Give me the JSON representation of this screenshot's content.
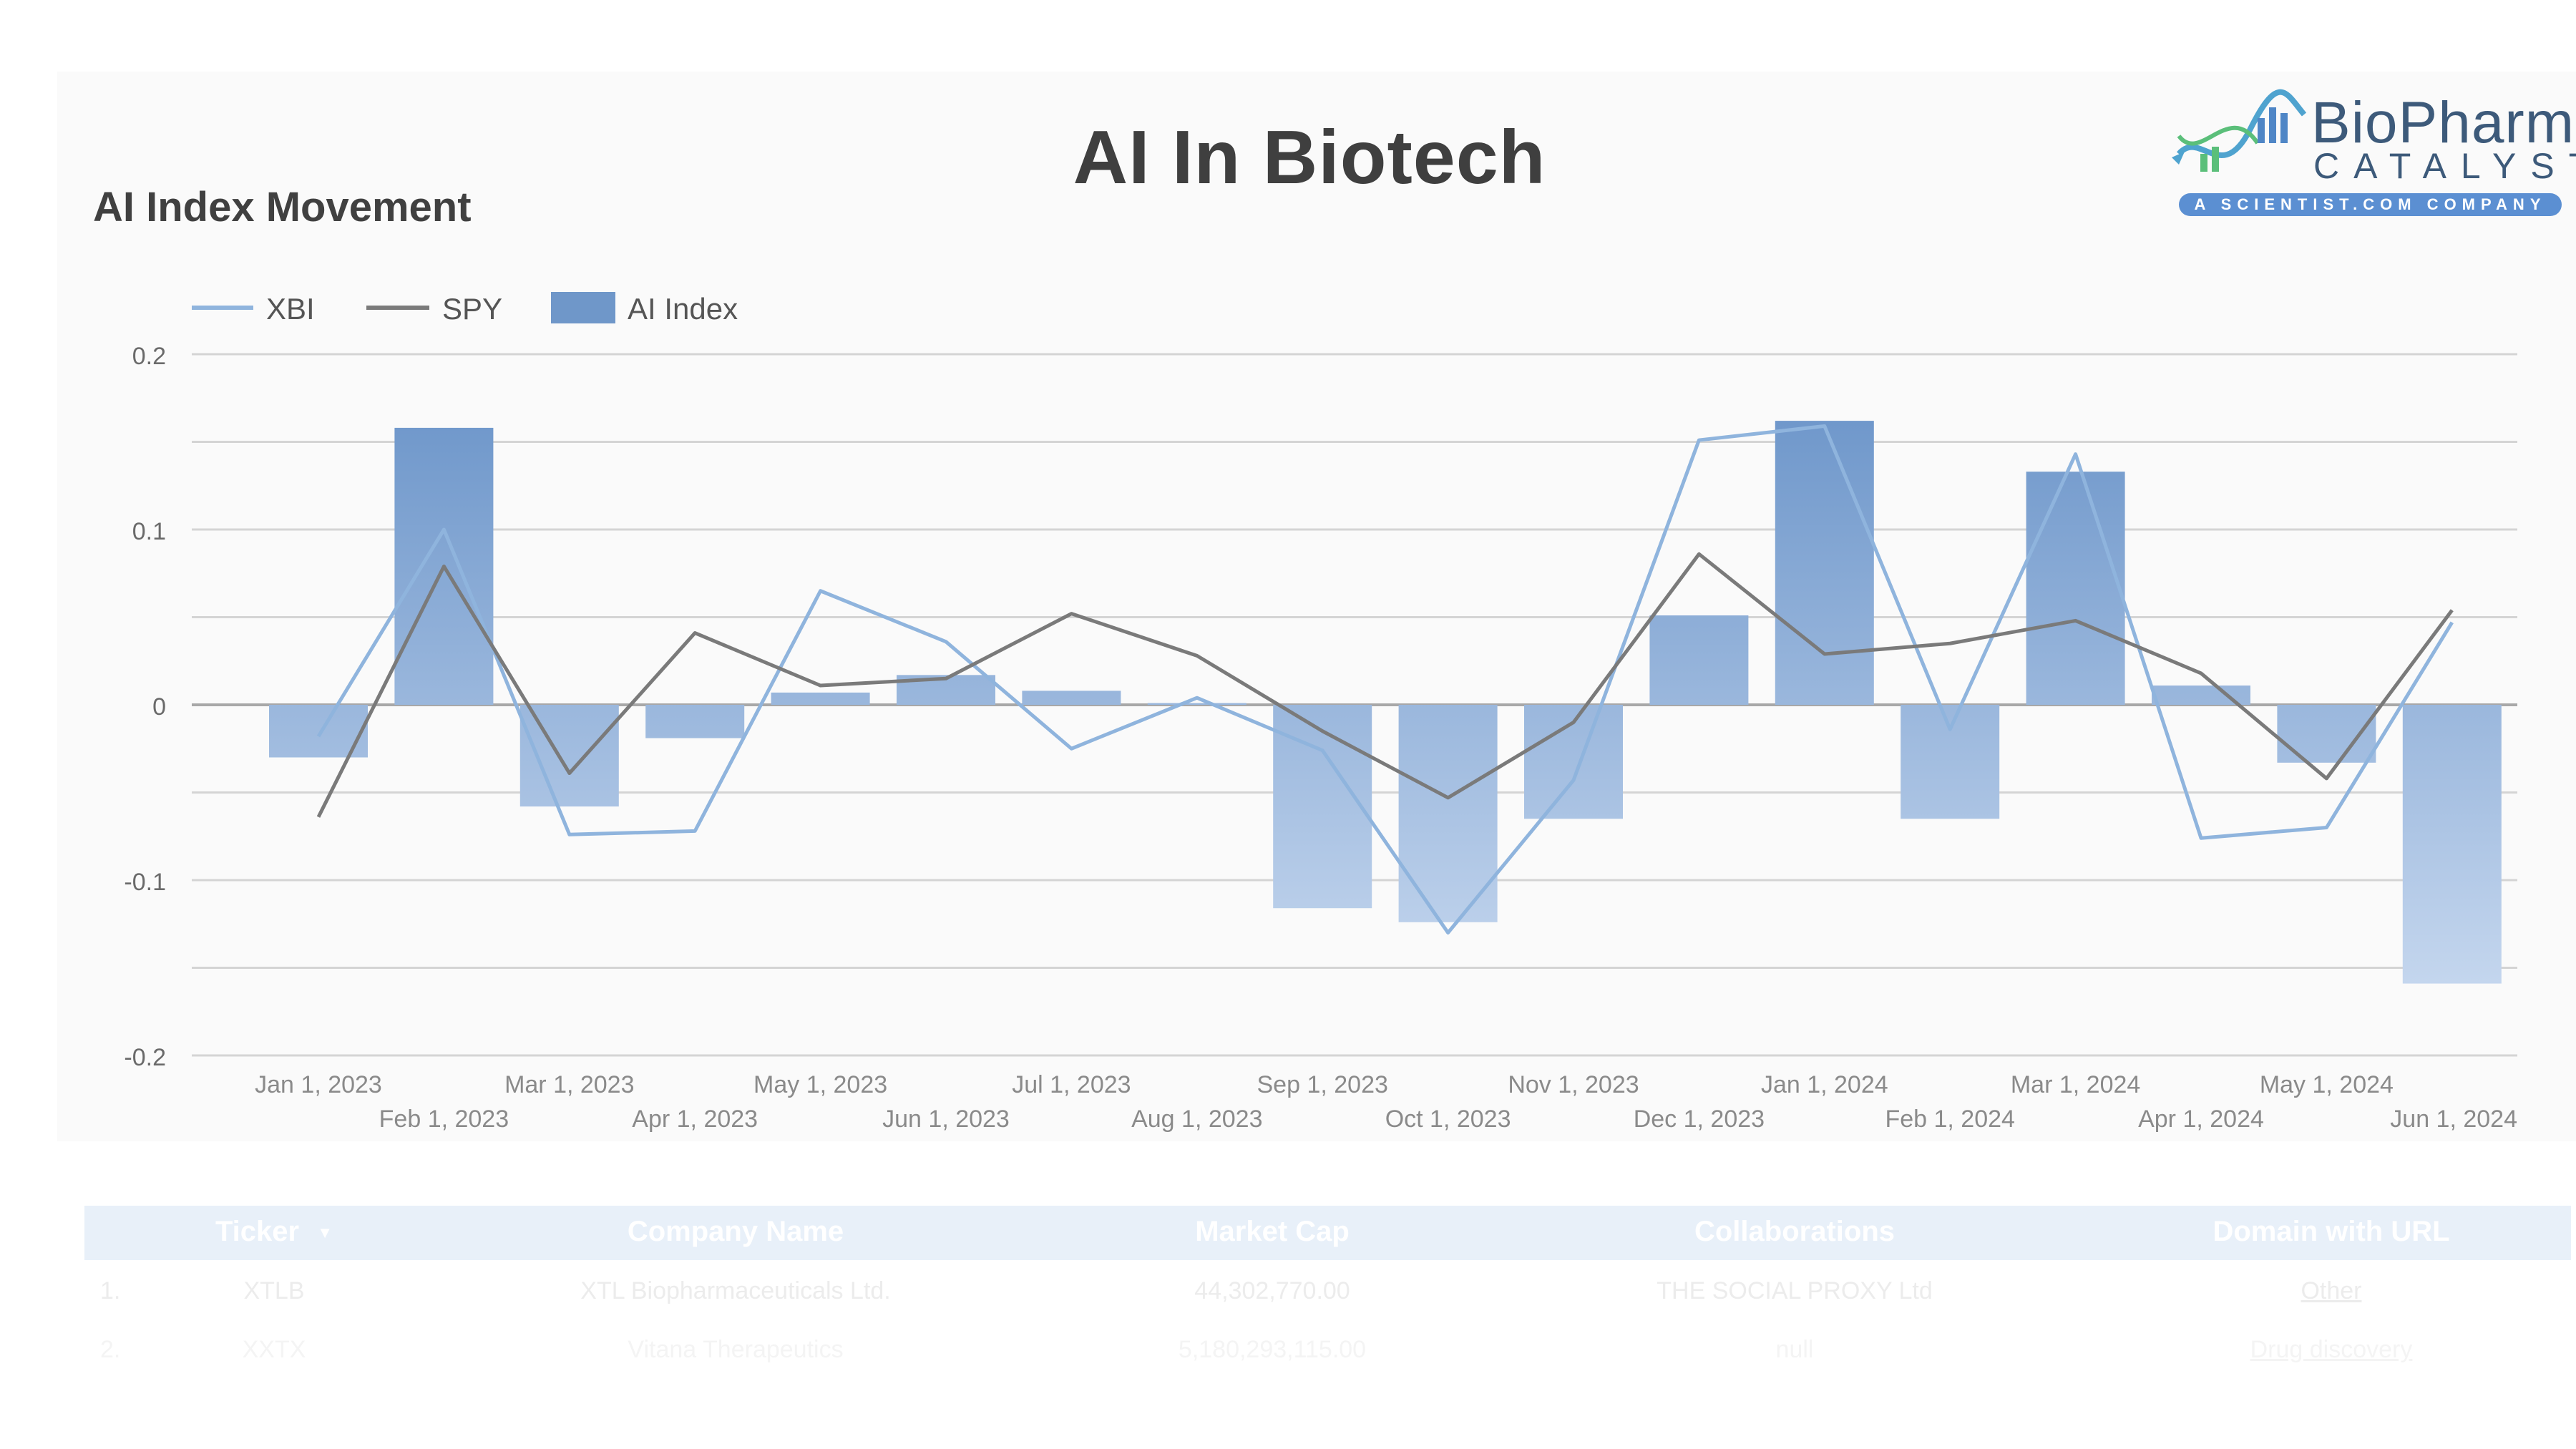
{
  "page": {
    "title": "AI In Biotech",
    "chart_heading": "AI Index Movement"
  },
  "logo": {
    "name": "BioPharm",
    "subtitle": "CATALYST",
    "tagline": "A SCIENTIST.COM COMPANY"
  },
  "colors": {
    "xbi": "#8fb4dd",
    "spy": "#7a7a7a",
    "ai_index": "#6f97c9",
    "grid": "#d4d4d4",
    "tick_text": "#8a8a8a"
  },
  "chart_data": {
    "type": "bar",
    "title": "",
    "xlabel": "",
    "ylabel": "",
    "ylim": [
      -0.2,
      0.2
    ],
    "yticks": [
      0.2,
      0.1,
      0,
      -0.1,
      -0.2
    ],
    "ytick_labels": [
      "0.2",
      "0.1",
      "0",
      "-0.1",
      "-0.2"
    ],
    "legend_position": "top-left",
    "grid": true,
    "categories": [
      "Jan 1, 2023",
      "Feb 1, 2023",
      "Mar 1, 2023",
      "Apr 1, 2023",
      "May 1, 2023",
      "Jun 1, 2023",
      "Jul 1, 2023",
      "Aug 1, 2023",
      "Sep 1, 2023",
      "Oct 1, 2023",
      "Nov 1, 2023",
      "Dec 1, 2023",
      "Jan 1, 2024",
      "Feb 1, 2024",
      "Mar 1, 2024",
      "Apr 1, 2024",
      "May 1, 2024",
      "Jun 1, 2024"
    ],
    "series": [
      {
        "name": "XBI",
        "type": "line",
        "values": [
          -0.018,
          0.1,
          -0.074,
          -0.072,
          0.065,
          0.036,
          -0.025,
          0.004,
          -0.026,
          -0.13,
          -0.043,
          0.151,
          0.159,
          -0.014,
          0.143,
          -0.076,
          -0.07,
          0.047
        ]
      },
      {
        "name": "SPY",
        "type": "line",
        "values": [
          -0.064,
          0.079,
          -0.039,
          0.041,
          0.011,
          0.015,
          0.052,
          0.028,
          -0.015,
          -0.053,
          -0.01,
          0.086,
          0.029,
          0.035,
          0.048,
          0.018,
          -0.042,
          0.054
        ]
      },
      {
        "name": "AI Index",
        "type": "bar",
        "values": [
          -0.03,
          0.158,
          -0.058,
          -0.019,
          0.007,
          0.017,
          0.008,
          0.001,
          -0.116,
          -0.124,
          -0.065,
          0.051,
          0.162,
          -0.065,
          0.133,
          0.011,
          -0.033,
          -0.159
        ]
      }
    ]
  },
  "table": {
    "columns": [
      "Ticker",
      "Company Name",
      "Market Cap",
      "Collaborations",
      "Domain with URL"
    ],
    "sort_indicator": "▼",
    "rows": [
      {
        "index": "1.",
        "ticker": "XTLB",
        "company": "XTL Biopharmaceuticals Ltd.",
        "market_cap": "44,302,770.00",
        "collaborations": "THE SOCIAL PROXY Ltd",
        "domain": "Other"
      },
      {
        "index": "2.",
        "ticker": "XXTX",
        "company": "Vitana Therapeutics",
        "market_cap": "5,180,293,115.00",
        "collaborations": "null",
        "domain": "Drug discovery"
      }
    ]
  }
}
